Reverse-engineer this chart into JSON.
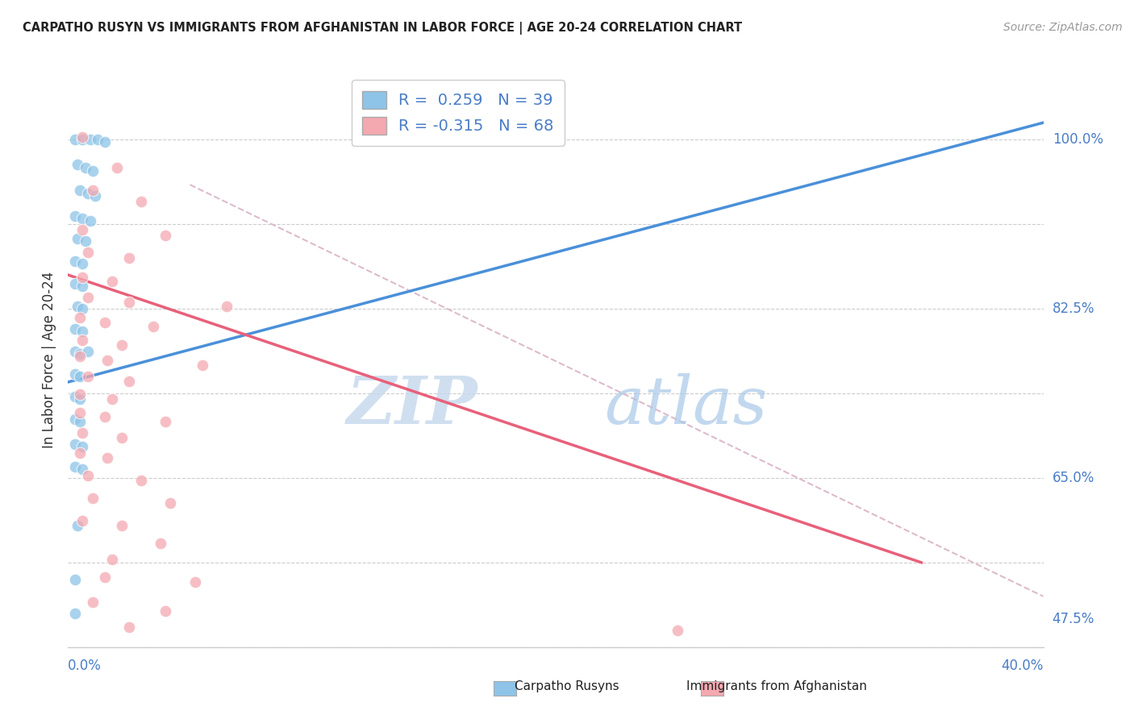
{
  "title": "CARPATHO RUSYN VS IMMIGRANTS FROM AFGHANISTAN IN LABOR FORCE | AGE 20-24 CORRELATION CHART",
  "source": "Source: ZipAtlas.com",
  "ylabel_label": "In Labor Force | Age 20-24",
  "x_min": 0.0,
  "x_max": 0.4,
  "y_min": 0.55,
  "y_max": 1.06,
  "blue_R": 0.259,
  "blue_N": 39,
  "pink_R": -0.315,
  "pink_N": 68,
  "legend_label_blue": "Carpatho Rusyns",
  "legend_label_pink": "Immigrants from Afghanistan",
  "blue_color": "#8dc4e8",
  "pink_color": "#f4a8b0",
  "blue_line_color": "#4a90d9",
  "pink_line_color": "#e8607a",
  "diagonal_line_color": "#ddbbcc",
  "watermark_zip": "ZIP",
  "watermark_atlas": "atlas",
  "y_ticks": [
    0.575,
    0.65,
    0.725,
    0.8,
    0.875,
    0.95,
    1.025
  ],
  "y_tick_labels_right": {
    "1.025": "100.0%",
    "0.875": "82.5%",
    "0.725": "65.0%",
    "0.575": "47.5%"
  },
  "blue_scatter": [
    [
      0.003,
      1.0
    ],
    [
      0.006,
      1.0
    ],
    [
      0.009,
      1.0
    ],
    [
      0.012,
      1.0
    ],
    [
      0.015,
      0.998
    ],
    [
      0.004,
      0.978
    ],
    [
      0.007,
      0.975
    ],
    [
      0.01,
      0.972
    ],
    [
      0.005,
      0.955
    ],
    [
      0.008,
      0.952
    ],
    [
      0.011,
      0.95
    ],
    [
      0.003,
      0.932
    ],
    [
      0.006,
      0.93
    ],
    [
      0.009,
      0.928
    ],
    [
      0.004,
      0.912
    ],
    [
      0.007,
      0.91
    ],
    [
      0.003,
      0.892
    ],
    [
      0.006,
      0.89
    ],
    [
      0.003,
      0.872
    ],
    [
      0.006,
      0.87
    ],
    [
      0.004,
      0.852
    ],
    [
      0.006,
      0.85
    ],
    [
      0.003,
      0.832
    ],
    [
      0.006,
      0.83
    ],
    [
      0.003,
      0.812
    ],
    [
      0.005,
      0.81
    ],
    [
      0.008,
      0.812
    ],
    [
      0.003,
      0.792
    ],
    [
      0.005,
      0.79
    ],
    [
      0.003,
      0.772
    ],
    [
      0.005,
      0.77
    ],
    [
      0.003,
      0.752
    ],
    [
      0.005,
      0.75
    ],
    [
      0.003,
      0.73
    ],
    [
      0.006,
      0.728
    ],
    [
      0.003,
      0.71
    ],
    [
      0.006,
      0.708
    ],
    [
      0.004,
      0.658
    ],
    [
      0.003,
      0.61
    ],
    [
      0.003,
      0.58
    ]
  ],
  "pink_scatter": [
    [
      0.006,
      1.002
    ],
    [
      0.02,
      0.975
    ],
    [
      0.01,
      0.955
    ],
    [
      0.03,
      0.945
    ],
    [
      0.006,
      0.92
    ],
    [
      0.04,
      0.915
    ],
    [
      0.008,
      0.9
    ],
    [
      0.025,
      0.895
    ],
    [
      0.006,
      0.878
    ],
    [
      0.018,
      0.874
    ],
    [
      0.008,
      0.86
    ],
    [
      0.025,
      0.856
    ],
    [
      0.065,
      0.852
    ],
    [
      0.005,
      0.842
    ],
    [
      0.015,
      0.838
    ],
    [
      0.035,
      0.834
    ],
    [
      0.006,
      0.822
    ],
    [
      0.022,
      0.818
    ],
    [
      0.005,
      0.808
    ],
    [
      0.016,
      0.804
    ],
    [
      0.055,
      0.8
    ],
    [
      0.008,
      0.79
    ],
    [
      0.025,
      0.786
    ],
    [
      0.005,
      0.774
    ],
    [
      0.018,
      0.77
    ],
    [
      0.005,
      0.758
    ],
    [
      0.015,
      0.754
    ],
    [
      0.04,
      0.75
    ],
    [
      0.006,
      0.74
    ],
    [
      0.022,
      0.736
    ],
    [
      0.005,
      0.722
    ],
    [
      0.016,
      0.718
    ],
    [
      0.008,
      0.702
    ],
    [
      0.03,
      0.698
    ],
    [
      0.01,
      0.682
    ],
    [
      0.042,
      0.678
    ],
    [
      0.006,
      0.662
    ],
    [
      0.022,
      0.658
    ],
    [
      0.038,
      0.642
    ],
    [
      0.018,
      0.628
    ],
    [
      0.015,
      0.612
    ],
    [
      0.052,
      0.608
    ],
    [
      0.01,
      0.59
    ],
    [
      0.04,
      0.582
    ],
    [
      0.025,
      0.568
    ],
    [
      0.25,
      0.565
    ]
  ],
  "blue_trend": [
    0.0,
    0.785,
    0.4,
    1.015
  ],
  "pink_trend": [
    0.0,
    0.88,
    0.35,
    0.625
  ],
  "diag_trend": [
    0.05,
    0.96,
    0.4,
    0.595
  ]
}
